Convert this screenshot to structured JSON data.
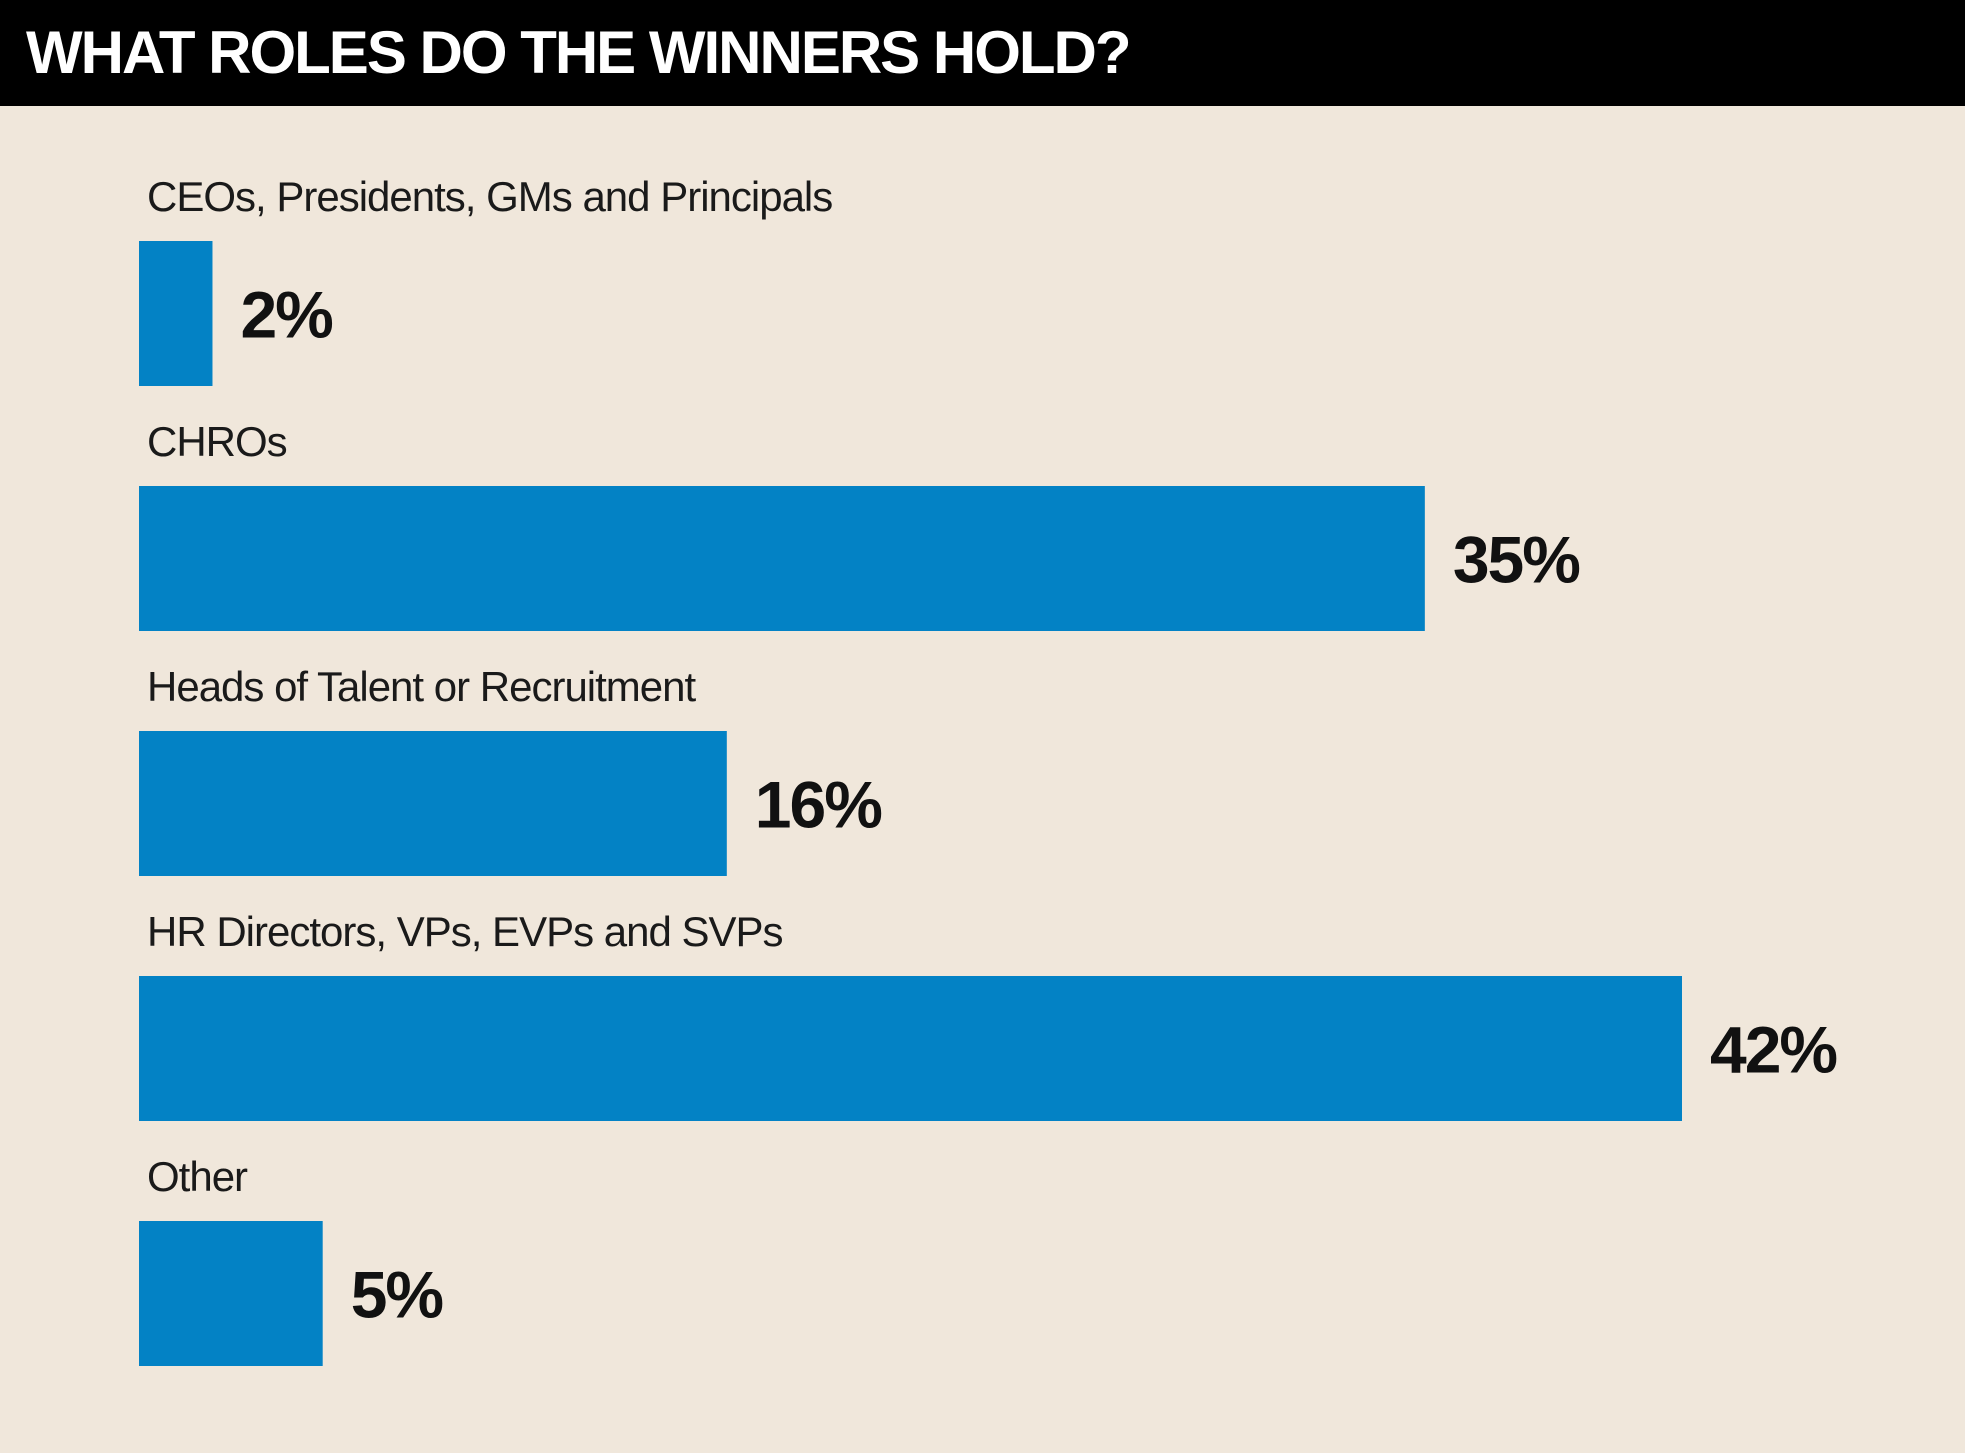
{
  "chart_data": {
    "type": "bar",
    "orientation": "horizontal",
    "title": "WHAT ROLES DO THE WINNERS HOLD?",
    "categories": [
      "CEOs, Presidents, GMs and Principals",
      "CHROs",
      "Heads of Talent or Recruitment",
      "HR Directors, VPs, EVPs and SVPs",
      "Other"
    ],
    "values": [
      2,
      35,
      16,
      42,
      5
    ],
    "value_labels": [
      "2%",
      "35%",
      "16%",
      "42%",
      "5%"
    ],
    "xlim": [
      0,
      42
    ],
    "grid": false,
    "legend": "none"
  },
  "colors": {
    "background": "#f0e7db",
    "header": "#000000",
    "title_text": "#ffffff",
    "bar": "#0382c5",
    "text": "#111111"
  }
}
